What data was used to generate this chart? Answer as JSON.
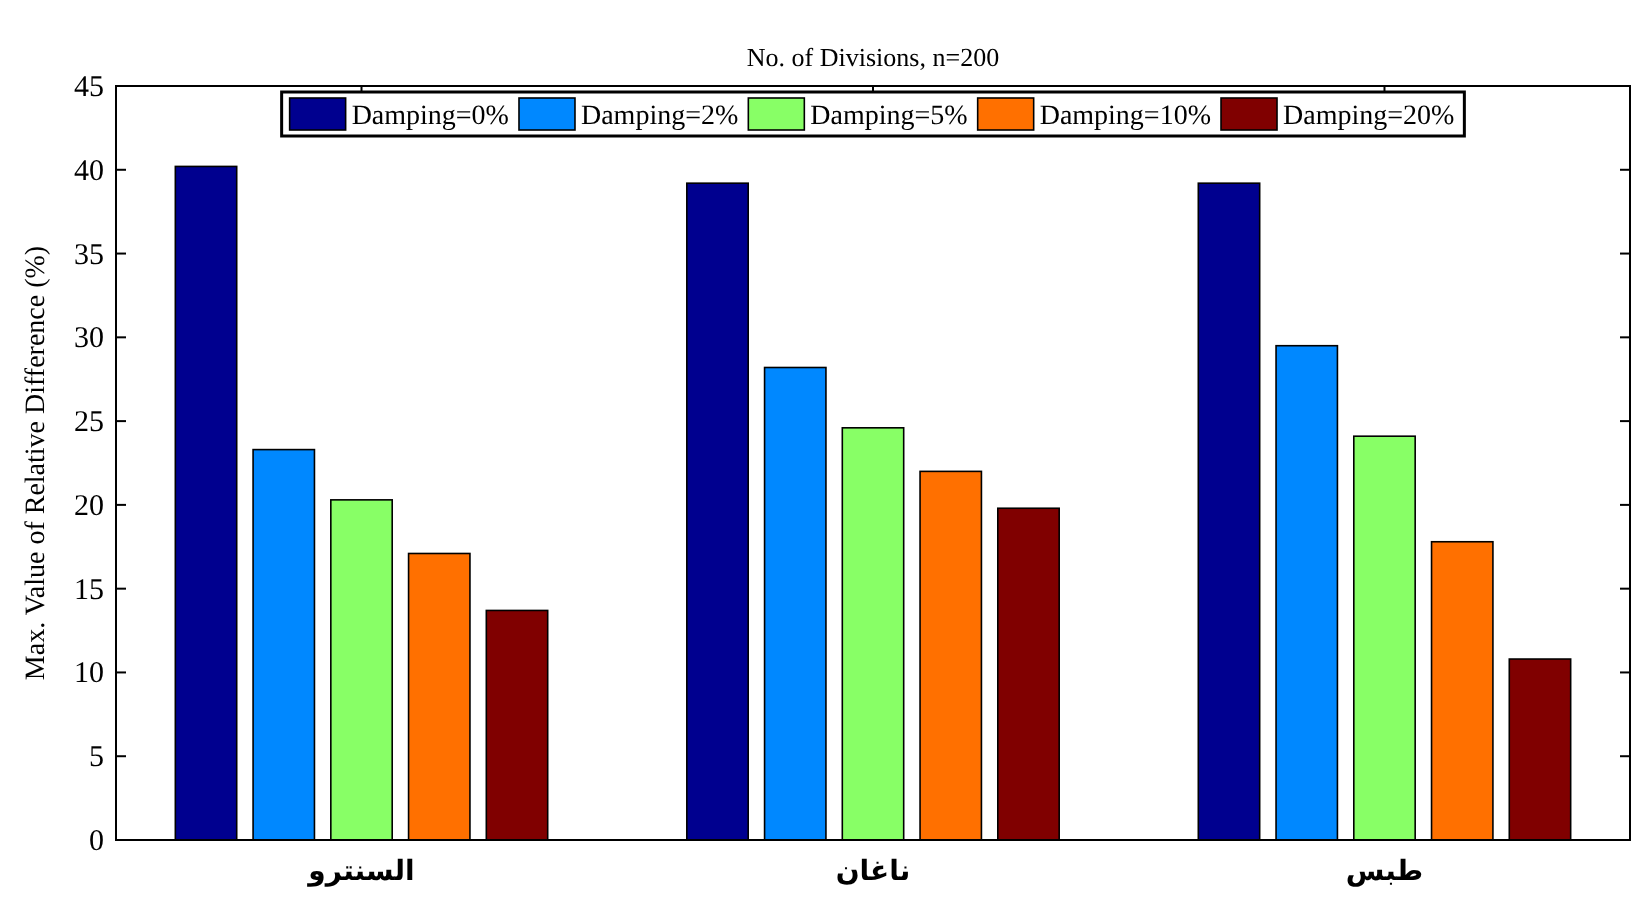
{
  "chart_data": {
    "type": "bar",
    "title": "No. of Divisions, n=200",
    "ylabel": "Max. Value of Relative Difference (%)",
    "categories": [
      "السنترو",
      "ناغان",
      "طبس"
    ],
    "series": [
      {
        "name": "Damping=0%",
        "color": "#00008f",
        "values": [
          40.2,
          39.2,
          39.2
        ]
      },
      {
        "name": "Damping=2%",
        "color": "#0088ff",
        "values": [
          23.3,
          28.2,
          29.5
        ]
      },
      {
        "name": "Damping=5%",
        "color": "#88ff66",
        "values": [
          20.3,
          24.6,
          24.1
        ]
      },
      {
        "name": "Damping=10%",
        "color": "#ff7000",
        "values": [
          17.1,
          22.0,
          17.8
        ]
      },
      {
        "name": "Damping=20%",
        "color": "#800000",
        "values": [
          13.7,
          19.8,
          10.8
        ]
      }
    ],
    "ylim": [
      0,
      45
    ],
    "yticks": [
      0,
      5,
      10,
      15,
      20,
      25,
      30,
      35,
      40,
      45
    ],
    "grid": false,
    "legend": "top"
  }
}
